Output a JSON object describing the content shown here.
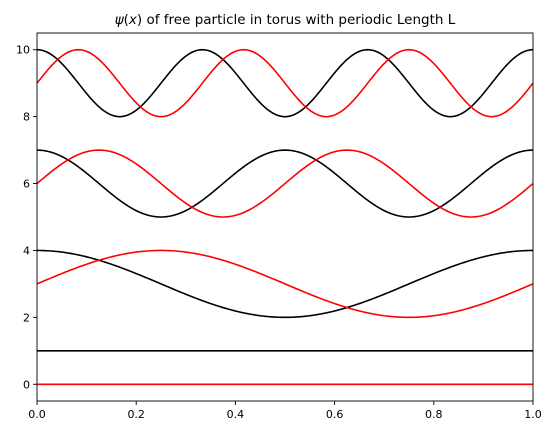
{
  "chart_data": {
    "type": "line",
    "title_parts": {
      "psi": "ψ",
      "open": "(",
      "x": "x",
      "rest": ") of free particle in torus with periodic Length L"
    },
    "xlabel": "",
    "ylabel": "",
    "xlim": [
      0.0,
      1.0
    ],
    "ylim": [
      -0.5,
      10.5
    ],
    "x_ticks": [
      "0.0",
      "0.2",
      "0.4",
      "0.6",
      "0.8",
      "1.0"
    ],
    "y_ticks": [
      "0",
      "2",
      "4",
      "6",
      "8",
      "10"
    ],
    "grid": false,
    "legend": "none",
    "colors": {
      "cos": "#000000",
      "sin": "#ff0000"
    },
    "series": [
      {
        "n": 0,
        "color": "black",
        "offset": 1,
        "amplitude": 0,
        "function": "cos(2πnx)",
        "x": [
          0.0,
          0.5,
          1.0
        ],
        "y": [
          1,
          1,
          1
        ]
      },
      {
        "n": 0,
        "color": "red",
        "offset": 0,
        "amplitude": 0,
        "function": "sin(2πnx)",
        "x": [
          0.0,
          0.5,
          1.0
        ],
        "y": [
          0,
          0,
          0
        ]
      },
      {
        "n": 1,
        "color": "black",
        "offset": 3,
        "amplitude": 1,
        "function": "cos(2πnx)",
        "x": [
          0.0,
          0.25,
          0.5,
          0.75,
          1.0
        ],
        "y": [
          4,
          3,
          2,
          3,
          4
        ]
      },
      {
        "n": 1,
        "color": "red",
        "offset": 3,
        "amplitude": 1,
        "function": "sin(2πnx)",
        "x": [
          0.0,
          0.25,
          0.5,
          0.75,
          1.0
        ],
        "y": [
          3,
          4,
          3,
          2,
          3
        ]
      },
      {
        "n": 2,
        "color": "black",
        "offset": 6,
        "amplitude": 1,
        "function": "cos(2πnx)",
        "x": [
          0.0,
          0.25,
          0.5,
          0.75,
          1.0
        ],
        "y": [
          7,
          5,
          7,
          5,
          7
        ]
      },
      {
        "n": 2,
        "color": "red",
        "offset": 6,
        "amplitude": 1,
        "function": "sin(2πnx)",
        "x": [
          0.0,
          0.125,
          0.375,
          0.625,
          0.875,
          1.0
        ],
        "y": [
          6,
          7,
          5,
          7,
          5,
          6
        ]
      },
      {
        "n": 3,
        "color": "black",
        "offset": 9,
        "amplitude": 1,
        "function": "cos(2πnx)",
        "x": [
          0.0,
          0.1667,
          0.3333,
          0.5,
          0.6667,
          0.8333,
          1.0
        ],
        "y": [
          10,
          8,
          10,
          8,
          10,
          8,
          10
        ]
      },
      {
        "n": 3,
        "color": "red",
        "offset": 9,
        "amplitude": 1,
        "function": "sin(2πnx)",
        "x": [
          0.0,
          0.0833,
          0.25,
          0.4167,
          0.5833,
          0.75,
          0.9167,
          1.0
        ],
        "y": [
          9,
          10,
          8,
          10,
          8,
          10,
          8,
          9
        ]
      }
    ]
  }
}
